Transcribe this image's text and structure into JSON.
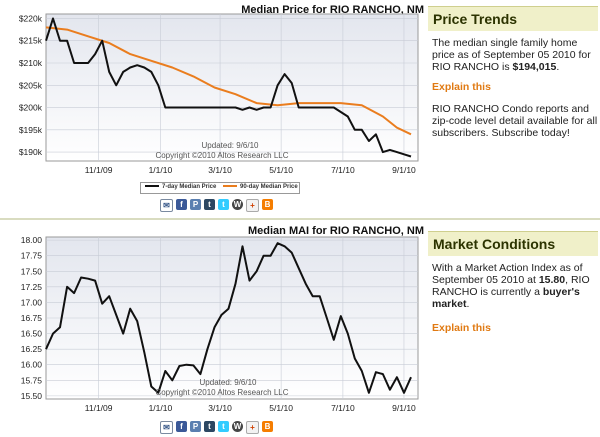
{
  "price_chart": {
    "title": "Median Price for RIO RANCHO, NM",
    "updated": "Updated: 9/6/10",
    "copyright": "Copyright ©2010 Altos Research LLC",
    "legend": [
      "7-day Median Price",
      "90-day Median Price"
    ]
  },
  "mai_chart": {
    "title": "Median MAI for RIO RANCHO, NM",
    "updated": "Updated: 9/6/10",
    "copyright": "Copyright ©2010 Altos Research LLC"
  },
  "price_trends": {
    "heading": "Price Trends",
    "text_before": "The median single family home price as of September 05 2010 for RIO RANCHO is ",
    "price": "$194,015",
    "text_after": ".",
    "explain": "Explain this",
    "promo": "RIO RANCHO Condo reports and zip-code level detail available for all subscribers. Subscribe today!"
  },
  "market_conditions": {
    "heading": "Market Conditions",
    "text_before": "With a Market Action Index as of September 05 2010 at ",
    "mai_value": "15.80",
    "text_mid": ", RIO RANCHO is currently a ",
    "market": "buyer's market",
    "text_after": ".",
    "explain": "Explain this"
  },
  "share_icons": [
    "email-icon",
    "facebook-icon",
    "print-icon",
    "tumblr-icon",
    "twitter-icon",
    "wordpress-icon",
    "share-icon",
    "blogger-icon"
  ],
  "colors": {
    "seven_day": "#111111",
    "ninety_day": "#ea7d1e",
    "panel_bg": "#f0f0c9",
    "link": "#e07a13"
  },
  "chart_data": [
    {
      "type": "line",
      "title": "Median Price for RIO RANCHO, NM",
      "x_ticks": [
        "11/1/09",
        "1/1/10",
        "3/1/10",
        "5/1/10",
        "7/1/10",
        "9/1/10"
      ],
      "y_ticks": [
        "$190k",
        "$195k",
        "$200k",
        "$205k",
        "$210k",
        "$215k",
        "$220k"
      ],
      "ylim": [
        188,
        221
      ],
      "xlim": [
        0,
        53
      ],
      "legend": "bottom",
      "series": [
        {
          "name": "7-day Median Price",
          "color": "#111111",
          "x": [
            0,
            1,
            2,
            3,
            4,
            5,
            6,
            7,
            8,
            9,
            10,
            11,
            12,
            13,
            14,
            15,
            16,
            17,
            18,
            19,
            20,
            21,
            22,
            23,
            24,
            25,
            26,
            27,
            28,
            29,
            30,
            31,
            32,
            33,
            34,
            35,
            36,
            37,
            38,
            39,
            40,
            41,
            42,
            43,
            44,
            45,
            46,
            47,
            48,
            49,
            50,
            51,
            52
          ],
          "y": [
            215,
            220,
            215,
            215,
            210,
            210,
            210,
            212,
            215,
            208,
            205,
            208,
            209,
            209.5,
            209,
            208,
            205,
            200,
            200,
            200,
            200,
            200,
            200,
            200,
            200,
            200,
            200,
            200,
            199.5,
            200,
            199.5,
            200,
            200,
            205,
            207.5,
            205.5,
            200,
            200,
            200,
            200,
            200,
            200,
            199,
            198,
            195,
            195,
            192.5,
            194,
            190,
            190.5,
            190,
            189.5,
            189
          ]
        },
        {
          "name": "90-day Median Price",
          "color": "#ea7d1e",
          "x": [
            0,
            3,
            6,
            9,
            12,
            15,
            18,
            21,
            24,
            27,
            30,
            33,
            36,
            39,
            42,
            45,
            48,
            50,
            52
          ],
          "y": [
            218,
            217.5,
            216,
            214.5,
            212,
            210.5,
            209,
            207,
            204.5,
            203,
            201,
            200.5,
            201,
            201,
            201,
            200.5,
            198,
            195.5,
            194
          ]
        }
      ]
    },
    {
      "type": "line",
      "title": "Median MAI for RIO RANCHO, NM",
      "x_ticks": [
        "11/1/09",
        "1/1/10",
        "3/1/10",
        "5/1/10",
        "7/1/10",
        "9/1/10"
      ],
      "y_ticks": [
        "15.50",
        "15.75",
        "16.00",
        "16.25",
        "16.50",
        "16.75",
        "17.00",
        "17.25",
        "17.50",
        "17.75",
        "18.00"
      ],
      "ylim": [
        15.45,
        18.05
      ],
      "xlim": [
        0,
        53
      ],
      "series": [
        {
          "name": "",
          "color": "#111111",
          "x": [
            0,
            1,
            2,
            3,
            4,
            5,
            6,
            7,
            8,
            9,
            10,
            11,
            12,
            13,
            14,
            15,
            16,
            17,
            18,
            19,
            20,
            21,
            22,
            23,
            24,
            25,
            26,
            27,
            28,
            29,
            30,
            31,
            32,
            33,
            34,
            35,
            36,
            37,
            38,
            39,
            40,
            41,
            42,
            43,
            44,
            45,
            46,
            47,
            48,
            49,
            50,
            51,
            52
          ],
          "y": [
            16.25,
            16.5,
            16.6,
            17.25,
            17.15,
            17.4,
            17.38,
            17.35,
            16.98,
            17.1,
            16.8,
            16.5,
            16.9,
            16.7,
            16.2,
            15.65,
            15.55,
            15.9,
            15.75,
            15.98,
            16.0,
            15.99,
            15.85,
            16.25,
            16.6,
            16.8,
            16.9,
            17.3,
            17.9,
            17.35,
            17.5,
            17.75,
            17.75,
            17.95,
            17.9,
            17.8,
            17.55,
            17.3,
            17.1,
            17.1,
            16.75,
            16.4,
            16.78,
            16.5,
            16.1,
            15.9,
            15.55,
            15.88,
            15.85,
            15.6,
            15.8,
            15.55,
            15.8
          ]
        }
      ]
    }
  ]
}
